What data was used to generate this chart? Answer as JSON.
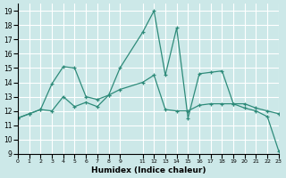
{
  "xlabel": "Humidex (Indice chaleur)",
  "xlim": [
    0,
    23
  ],
  "ylim": [
    9,
    19.5
  ],
  "yticks": [
    9,
    10,
    11,
    12,
    13,
    14,
    15,
    16,
    17,
    18,
    19
  ],
  "xtick_positions": [
    0,
    1,
    2,
    3,
    4,
    5,
    6,
    7,
    8,
    9,
    11,
    12,
    13,
    14,
    15,
    16,
    17,
    18,
    19,
    20,
    21,
    22,
    23
  ],
  "xtick_labels": [
    "0",
    "1",
    "2",
    "3",
    "4",
    "5",
    "6",
    "7",
    "8",
    "9",
    "11",
    "12",
    "13",
    "14",
    "15",
    "16",
    "17",
    "18",
    "19",
    "20",
    "21",
    "22",
    "23"
  ],
  "line_color": "#2e8b7a",
  "bg_color": "#cce8e8",
  "grid_color": "#ffffff",
  "series": [
    {
      "x": [
        0,
        1,
        2,
        3,
        4,
        5,
        6,
        7,
        8,
        9,
        11,
        12,
        13,
        14,
        15,
        16,
        17,
        18,
        19,
        20,
        21,
        22,
        23
      ],
      "y": [
        11.5,
        11.8,
        12.1,
        13.9,
        15.1,
        15.0,
        13.0,
        12.8,
        13.1,
        15.0,
        17.5,
        19.0,
        14.5,
        17.8,
        11.5,
        14.6,
        14.7,
        14.8,
        12.5,
        12.2,
        12.0,
        11.6,
        9.2
      ]
    },
    {
      "x": [
        0,
        1,
        2,
        3,
        4,
        5,
        6,
        7,
        8,
        9,
        11,
        12,
        13,
        14,
        15,
        16,
        17,
        18,
        19,
        20,
        21,
        22,
        23
      ],
      "y": [
        11.5,
        11.8,
        12.1,
        12.0,
        13.0,
        12.3,
        12.6,
        12.3,
        13.1,
        13.5,
        14.0,
        14.5,
        12.1,
        12.0,
        12.0,
        12.4,
        12.5,
        12.5,
        12.5,
        12.5,
        12.2,
        12.0,
        11.8
      ]
    }
  ]
}
